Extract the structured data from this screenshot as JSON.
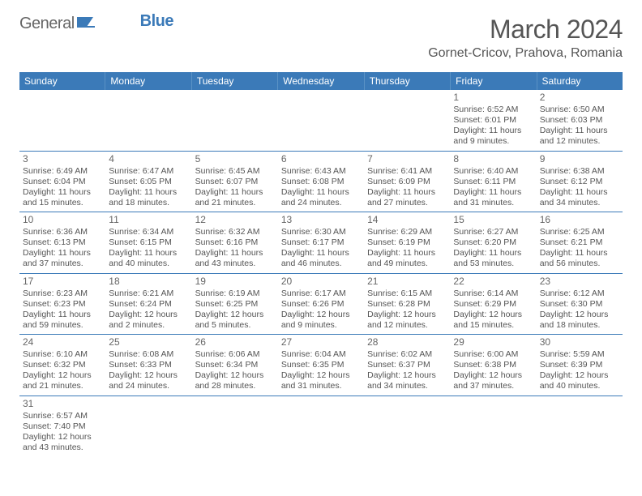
{
  "logo": {
    "text_general": "General",
    "text_blue": "Blue"
  },
  "title": "March 2024",
  "location": "Gornet-Cricov, Prahova, Romania",
  "header_bg": "#3b7ab8",
  "dayheaders": [
    "Sunday",
    "Monday",
    "Tuesday",
    "Wednesday",
    "Thursday",
    "Friday",
    "Saturday"
  ],
  "weeks": [
    [
      {
        "day": "",
        "sunrise": "",
        "sunset": "",
        "daylight1": "",
        "daylight2": ""
      },
      {
        "day": "",
        "sunrise": "",
        "sunset": "",
        "daylight1": "",
        "daylight2": ""
      },
      {
        "day": "",
        "sunrise": "",
        "sunset": "",
        "daylight1": "",
        "daylight2": ""
      },
      {
        "day": "",
        "sunrise": "",
        "sunset": "",
        "daylight1": "",
        "daylight2": ""
      },
      {
        "day": "",
        "sunrise": "",
        "sunset": "",
        "daylight1": "",
        "daylight2": ""
      },
      {
        "day": "1",
        "sunrise": "Sunrise: 6:52 AM",
        "sunset": "Sunset: 6:01 PM",
        "daylight1": "Daylight: 11 hours",
        "daylight2": "and 9 minutes."
      },
      {
        "day": "2",
        "sunrise": "Sunrise: 6:50 AM",
        "sunset": "Sunset: 6:03 PM",
        "daylight1": "Daylight: 11 hours",
        "daylight2": "and 12 minutes."
      }
    ],
    [
      {
        "day": "3",
        "sunrise": "Sunrise: 6:49 AM",
        "sunset": "Sunset: 6:04 PM",
        "daylight1": "Daylight: 11 hours",
        "daylight2": "and 15 minutes."
      },
      {
        "day": "4",
        "sunrise": "Sunrise: 6:47 AM",
        "sunset": "Sunset: 6:05 PM",
        "daylight1": "Daylight: 11 hours",
        "daylight2": "and 18 minutes."
      },
      {
        "day": "5",
        "sunrise": "Sunrise: 6:45 AM",
        "sunset": "Sunset: 6:07 PM",
        "daylight1": "Daylight: 11 hours",
        "daylight2": "and 21 minutes."
      },
      {
        "day": "6",
        "sunrise": "Sunrise: 6:43 AM",
        "sunset": "Sunset: 6:08 PM",
        "daylight1": "Daylight: 11 hours",
        "daylight2": "and 24 minutes."
      },
      {
        "day": "7",
        "sunrise": "Sunrise: 6:41 AM",
        "sunset": "Sunset: 6:09 PM",
        "daylight1": "Daylight: 11 hours",
        "daylight2": "and 27 minutes."
      },
      {
        "day": "8",
        "sunrise": "Sunrise: 6:40 AM",
        "sunset": "Sunset: 6:11 PM",
        "daylight1": "Daylight: 11 hours",
        "daylight2": "and 31 minutes."
      },
      {
        "day": "9",
        "sunrise": "Sunrise: 6:38 AM",
        "sunset": "Sunset: 6:12 PM",
        "daylight1": "Daylight: 11 hours",
        "daylight2": "and 34 minutes."
      }
    ],
    [
      {
        "day": "10",
        "sunrise": "Sunrise: 6:36 AM",
        "sunset": "Sunset: 6:13 PM",
        "daylight1": "Daylight: 11 hours",
        "daylight2": "and 37 minutes."
      },
      {
        "day": "11",
        "sunrise": "Sunrise: 6:34 AM",
        "sunset": "Sunset: 6:15 PM",
        "daylight1": "Daylight: 11 hours",
        "daylight2": "and 40 minutes."
      },
      {
        "day": "12",
        "sunrise": "Sunrise: 6:32 AM",
        "sunset": "Sunset: 6:16 PM",
        "daylight1": "Daylight: 11 hours",
        "daylight2": "and 43 minutes."
      },
      {
        "day": "13",
        "sunrise": "Sunrise: 6:30 AM",
        "sunset": "Sunset: 6:17 PM",
        "daylight1": "Daylight: 11 hours",
        "daylight2": "and 46 minutes."
      },
      {
        "day": "14",
        "sunrise": "Sunrise: 6:29 AM",
        "sunset": "Sunset: 6:19 PM",
        "daylight1": "Daylight: 11 hours",
        "daylight2": "and 49 minutes."
      },
      {
        "day": "15",
        "sunrise": "Sunrise: 6:27 AM",
        "sunset": "Sunset: 6:20 PM",
        "daylight1": "Daylight: 11 hours",
        "daylight2": "and 53 minutes."
      },
      {
        "day": "16",
        "sunrise": "Sunrise: 6:25 AM",
        "sunset": "Sunset: 6:21 PM",
        "daylight1": "Daylight: 11 hours",
        "daylight2": "and 56 minutes."
      }
    ],
    [
      {
        "day": "17",
        "sunrise": "Sunrise: 6:23 AM",
        "sunset": "Sunset: 6:23 PM",
        "daylight1": "Daylight: 11 hours",
        "daylight2": "and 59 minutes."
      },
      {
        "day": "18",
        "sunrise": "Sunrise: 6:21 AM",
        "sunset": "Sunset: 6:24 PM",
        "daylight1": "Daylight: 12 hours",
        "daylight2": "and 2 minutes."
      },
      {
        "day": "19",
        "sunrise": "Sunrise: 6:19 AM",
        "sunset": "Sunset: 6:25 PM",
        "daylight1": "Daylight: 12 hours",
        "daylight2": "and 5 minutes."
      },
      {
        "day": "20",
        "sunrise": "Sunrise: 6:17 AM",
        "sunset": "Sunset: 6:26 PM",
        "daylight1": "Daylight: 12 hours",
        "daylight2": "and 9 minutes."
      },
      {
        "day": "21",
        "sunrise": "Sunrise: 6:15 AM",
        "sunset": "Sunset: 6:28 PM",
        "daylight1": "Daylight: 12 hours",
        "daylight2": "and 12 minutes."
      },
      {
        "day": "22",
        "sunrise": "Sunrise: 6:14 AM",
        "sunset": "Sunset: 6:29 PM",
        "daylight1": "Daylight: 12 hours",
        "daylight2": "and 15 minutes."
      },
      {
        "day": "23",
        "sunrise": "Sunrise: 6:12 AM",
        "sunset": "Sunset: 6:30 PM",
        "daylight1": "Daylight: 12 hours",
        "daylight2": "and 18 minutes."
      }
    ],
    [
      {
        "day": "24",
        "sunrise": "Sunrise: 6:10 AM",
        "sunset": "Sunset: 6:32 PM",
        "daylight1": "Daylight: 12 hours",
        "daylight2": "and 21 minutes."
      },
      {
        "day": "25",
        "sunrise": "Sunrise: 6:08 AM",
        "sunset": "Sunset: 6:33 PM",
        "daylight1": "Daylight: 12 hours",
        "daylight2": "and 24 minutes."
      },
      {
        "day": "26",
        "sunrise": "Sunrise: 6:06 AM",
        "sunset": "Sunset: 6:34 PM",
        "daylight1": "Daylight: 12 hours",
        "daylight2": "and 28 minutes."
      },
      {
        "day": "27",
        "sunrise": "Sunrise: 6:04 AM",
        "sunset": "Sunset: 6:35 PM",
        "daylight1": "Daylight: 12 hours",
        "daylight2": "and 31 minutes."
      },
      {
        "day": "28",
        "sunrise": "Sunrise: 6:02 AM",
        "sunset": "Sunset: 6:37 PM",
        "daylight1": "Daylight: 12 hours",
        "daylight2": "and 34 minutes."
      },
      {
        "day": "29",
        "sunrise": "Sunrise: 6:00 AM",
        "sunset": "Sunset: 6:38 PM",
        "daylight1": "Daylight: 12 hours",
        "daylight2": "and 37 minutes."
      },
      {
        "day": "30",
        "sunrise": "Sunrise: 5:59 AM",
        "sunset": "Sunset: 6:39 PM",
        "daylight1": "Daylight: 12 hours",
        "daylight2": "and 40 minutes."
      }
    ],
    [
      {
        "day": "31",
        "sunrise": "Sunrise: 6:57 AM",
        "sunset": "Sunset: 7:40 PM",
        "daylight1": "Daylight: 12 hours",
        "daylight2": "and 43 minutes."
      },
      {
        "day": "",
        "sunrise": "",
        "sunset": "",
        "daylight1": "",
        "daylight2": ""
      },
      {
        "day": "",
        "sunrise": "",
        "sunset": "",
        "daylight1": "",
        "daylight2": ""
      },
      {
        "day": "",
        "sunrise": "",
        "sunset": "",
        "daylight1": "",
        "daylight2": ""
      },
      {
        "day": "",
        "sunrise": "",
        "sunset": "",
        "daylight1": "",
        "daylight2": ""
      },
      {
        "day": "",
        "sunrise": "",
        "sunset": "",
        "daylight1": "",
        "daylight2": ""
      },
      {
        "day": "",
        "sunrise": "",
        "sunset": "",
        "daylight1": "",
        "daylight2": ""
      }
    ]
  ]
}
